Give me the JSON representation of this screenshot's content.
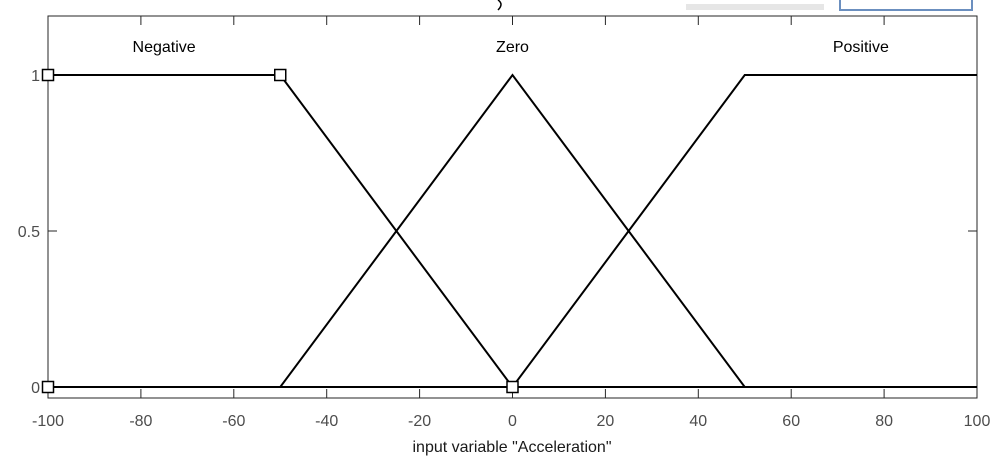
{
  "chart_data": {
    "type": "line",
    "xlabel": "input variable \"Acceleration\"",
    "ylabel": "",
    "xlim": [
      -100,
      100
    ],
    "ylim": [
      0,
      1
    ],
    "x_ticks": [
      -100,
      -80,
      -60,
      -40,
      -20,
      0,
      20,
      40,
      60,
      80,
      100
    ],
    "y_ticks": [
      0,
      0.5,
      1
    ],
    "grid": false,
    "series": [
      {
        "name": "Negative",
        "x": [
          -100,
          -50,
          0,
          100
        ],
        "y": [
          1,
          1,
          0,
          0
        ]
      },
      {
        "name": "Zero",
        "x": [
          -100,
          -50,
          0,
          50,
          100
        ],
        "y": [
          0,
          0,
          1,
          0,
          0
        ]
      },
      {
        "name": "Positive",
        "x": [
          -100,
          0,
          50,
          100
        ],
        "y": [
          0,
          0,
          1,
          1
        ]
      }
    ],
    "selected_markers": [
      {
        "x": -100,
        "y": 1
      },
      {
        "x": -50,
        "y": 1
      },
      {
        "x": 0,
        "y": 0
      },
      {
        "x": -100,
        "y": 0
      }
    ]
  }
}
